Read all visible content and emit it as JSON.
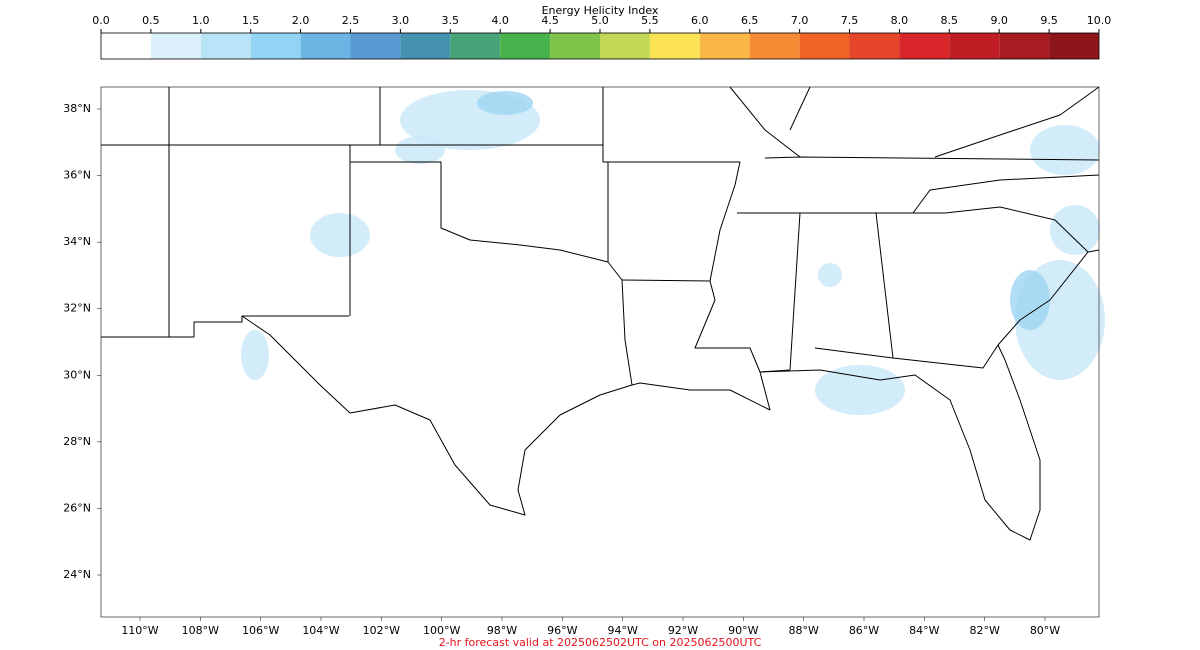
{
  "colorbar": {
    "title": "Energy Helicity Index",
    "ticks": [
      {
        "value": 0,
        "label": "0.0"
      },
      {
        "value": 0.5,
        "label": "0.5"
      },
      {
        "value": 1,
        "label": "1.0"
      },
      {
        "value": 1.5,
        "label": "1.5"
      },
      {
        "value": 2,
        "label": "2.0"
      },
      {
        "value": 2.5,
        "label": "2.5"
      },
      {
        "value": 3,
        "label": "3.0"
      },
      {
        "value": 3.5,
        "label": "3.5"
      },
      {
        "value": 4,
        "label": "4.0"
      },
      {
        "value": 4.5,
        "label": "4.5"
      },
      {
        "value": 5,
        "label": "5.0"
      },
      {
        "value": 5.5,
        "label": "5.5"
      },
      {
        "value": 6,
        "label": "6.0"
      },
      {
        "value": 6.5,
        "label": "6.5"
      },
      {
        "value": 7,
        "label": "7.0"
      },
      {
        "value": 7.5,
        "label": "7.5"
      },
      {
        "value": 8,
        "label": "8.0"
      },
      {
        "value": 8.5,
        "label": "8.5"
      },
      {
        "value": 9,
        "label": "9.0"
      },
      {
        "value": 9.5,
        "label": "9.5"
      },
      {
        "value": 10,
        "label": "10.0"
      }
    ],
    "colors": [
      "#ffffff",
      "#dcf0fb",
      "#b9e3f7",
      "#93d3f3",
      "#6cb4e3",
      "#5a9ad3",
      "#4492b0",
      "#46a478",
      "#48b24c",
      "#7ec44a",
      "#c2d855",
      "#fbe355",
      "#f9b845",
      "#f78b34",
      "#f06428",
      "#e54528",
      "#d8262a",
      "#c01d25",
      "#a91b21",
      "#8e161a"
    ]
  },
  "map": {
    "lat_ticks": [
      {
        "value": 38,
        "label": "38°N"
      },
      {
        "value": 36,
        "label": "36°N"
      },
      {
        "value": 34,
        "label": "34°N"
      },
      {
        "value": 32,
        "label": "32°N"
      },
      {
        "value": 30,
        "label": "30°N"
      },
      {
        "value": 28,
        "label": "28°N"
      },
      {
        "value": 26,
        "label": "26°N"
      },
      {
        "value": 24,
        "label": "24°N"
      }
    ],
    "lon_ticks": [
      {
        "value": -110,
        "label": "110°W"
      },
      {
        "value": -108,
        "label": "108°W"
      },
      {
        "value": -106,
        "label": "106°W"
      },
      {
        "value": -104,
        "label": "104°W"
      },
      {
        "value": -102,
        "label": "102°W"
      },
      {
        "value": -100,
        "label": "100°W"
      },
      {
        "value": -98,
        "label": "98°W"
      },
      {
        "value": -96,
        "label": "96°W"
      },
      {
        "value": -94,
        "label": "94°W"
      },
      {
        "value": -92,
        "label": "92°W"
      },
      {
        "value": -90,
        "label": "90°W"
      },
      {
        "value": -88,
        "label": "88°W"
      },
      {
        "value": -86,
        "label": "86°W"
      },
      {
        "value": -84,
        "label": "84°W"
      },
      {
        "value": -82,
        "label": "82°W"
      },
      {
        "value": -80,
        "label": "80°W"
      }
    ],
    "footer": "2-hr forecast valid at 2025062502UTC on 2025062500UTC"
  }
}
